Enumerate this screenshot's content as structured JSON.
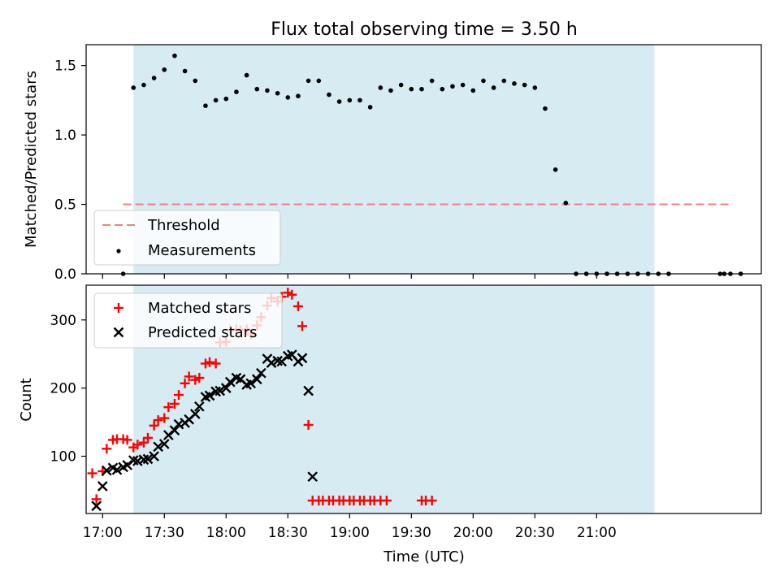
{
  "chart_data": {
    "title": "Flux total observing time = 3.50 h",
    "x_unit": "minutes since 16:00 UTC",
    "xlim": [
      -8,
      320
    ],
    "observing_window": [
      15,
      268
    ],
    "colors": {
      "window": "#add8e6",
      "threshold": "#f08080",
      "measurements": "#000000",
      "matched": "#ff0000",
      "predicted": "#000000"
    },
    "top": {
      "type": "scatter",
      "ylabel": "Matched/Predicted stars",
      "ylim": [
        0,
        1.65
      ],
      "yticks": [
        {
          "v": 0.0,
          "label": "0.0"
        },
        {
          "v": 0.5,
          "label": "0.5"
        },
        {
          "v": 1.0,
          "label": "1.0"
        },
        {
          "v": 1.5,
          "label": "1.5"
        }
      ],
      "threshold": {
        "value": 0.5,
        "x_range": [
          10,
          305
        ]
      },
      "measurements": {
        "x": [
          10,
          15,
          20,
          25,
          30,
          35,
          40,
          45,
          50,
          55,
          60,
          65,
          70,
          75,
          80,
          85,
          90,
          95,
          100,
          105,
          110,
          115,
          120,
          125,
          130,
          135,
          140,
          145,
          150,
          155,
          160,
          165,
          170,
          175,
          180,
          185,
          190,
          195,
          200,
          205,
          210,
          215,
          220,
          225,
          230,
          235,
          240,
          245,
          250,
          255,
          260,
          265,
          270,
          275,
          300,
          302,
          305,
          310
        ],
        "y": [
          0.0,
          1.34,
          1.36,
          1.41,
          1.47,
          1.57,
          1.46,
          1.39,
          1.21,
          1.25,
          1.26,
          1.31,
          1.43,
          1.33,
          1.32,
          1.3,
          1.27,
          1.28,
          1.39,
          1.39,
          1.29,
          1.24,
          1.25,
          1.25,
          1.2,
          1.34,
          1.32,
          1.36,
          1.33,
          1.33,
          1.39,
          1.33,
          1.35,
          1.36,
          1.32,
          1.39,
          1.34,
          1.39,
          1.37,
          1.36,
          1.34,
          1.19,
          0.75,
          0.51,
          0.0,
          0.0,
          0.0,
          0.0,
          0.0,
          0.0,
          0.0,
          0.0,
          0.0,
          0.0,
          0.0,
          0.0,
          0.0,
          0.0
        ]
      },
      "legend": {
        "threshold_label": "Threshold",
        "measurements_label": "Measurements",
        "position": "lower-left"
      }
    },
    "bottom": {
      "type": "scatter",
      "ylabel": "Count",
      "ylim": [
        16,
        351
      ],
      "yticks": [
        {
          "v": 100,
          "label": "100"
        },
        {
          "v": 200,
          "label": "200"
        },
        {
          "v": 300,
          "label": "300"
        }
      ],
      "xlabel": "Time (UTC)",
      "xticks": [
        {
          "v": 0,
          "label": "17:00"
        },
        {
          "v": 30,
          "label": "17:30"
        },
        {
          "v": 60,
          "label": "18:00"
        },
        {
          "v": 90,
          "label": "18:30"
        },
        {
          "v": 120,
          "label": "19:00"
        },
        {
          "v": 150,
          "label": "19:30"
        },
        {
          "v": 180,
          "label": "20:00"
        },
        {
          "v": 210,
          "label": "20:30"
        },
        {
          "v": 240,
          "label": "21:00"
        }
      ],
      "series": [
        {
          "name": "Matched stars",
          "marker": "plus",
          "x": [
            -5,
            -3,
            0,
            2,
            5,
            7,
            10,
            12,
            15,
            17,
            20,
            22,
            25,
            27,
            30,
            32,
            35,
            37,
            40,
            42,
            45,
            47,
            50,
            52,
            55,
            57,
            60,
            62,
            65,
            67,
            70,
            72,
            75,
            77,
            80,
            82,
            85,
            87,
            90,
            92,
            95,
            97,
            100,
            102,
            105,
            107,
            110,
            112,
            115,
            117,
            120,
            122,
            125,
            127,
            130,
            132,
            135,
            138,
            155,
            157,
            160
          ],
          "y": [
            75,
            37,
            78,
            111,
            124,
            125,
            125,
            124,
            113,
            117,
            120,
            127,
            145,
            153,
            156,
            172,
            177,
            190,
            207,
            217,
            212,
            215,
            236,
            238,
            236,
            267,
            268,
            285,
            286,
            285,
            286,
            279,
            292,
            304,
            321,
            332,
            327,
            334,
            340,
            337,
            320,
            291,
            146,
            35,
            35,
            35,
            35,
            35,
            35,
            35,
            35,
            35,
            35,
            35,
            35,
            35,
            35,
            35,
            35,
            35,
            35
          ]
        },
        {
          "name": "Predicted stars",
          "marker": "x",
          "x": [
            -3,
            0,
            2,
            5,
            7,
            10,
            12,
            15,
            17,
            20,
            22,
            25,
            27,
            30,
            32,
            35,
            37,
            40,
            42,
            45,
            47,
            50,
            52,
            55,
            57,
            60,
            62,
            65,
            67,
            70,
            72,
            75,
            77,
            80,
            82,
            85,
            87,
            90,
            92,
            95,
            97,
            100,
            102
          ],
          "y": [
            27,
            56,
            79,
            83,
            80,
            84,
            87,
            94,
            93,
            95,
            96,
            100,
            114,
            118,
            131,
            138,
            147,
            149,
            154,
            162,
            173,
            187,
            189,
            195,
            196,
            200,
            209,
            215,
            213,
            205,
            207,
            213,
            222,
            243,
            237,
            240,
            239,
            247,
            249,
            239,
            244,
            196,
            70
          ]
        }
      ]
    }
  }
}
